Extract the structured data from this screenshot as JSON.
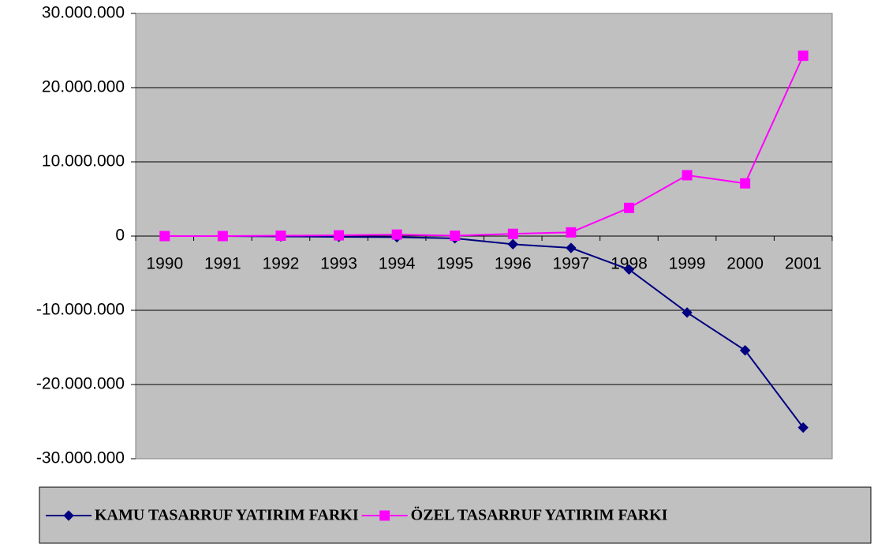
{
  "chart_data": {
    "type": "line",
    "categories": [
      "1990",
      "1991",
      "1992",
      "1993",
      "1994",
      "1995",
      "1996",
      "1997",
      "1998",
      "1999",
      "2000",
      "2001"
    ],
    "series": [
      {
        "name": "KAMU TASARRUF YATIRIM FARKI",
        "color": "#000080",
        "marker": "diamond",
        "values": [
          0,
          0,
          -50000,
          -100000,
          -150000,
          -300000,
          -1100000,
          -1600000,
          -4500000,
          -10300000,
          -15400000,
          -25800000
        ]
      },
      {
        "name": "ÖZEL TASARRUF YATIRIM FARKI",
        "color": "#ff00ff",
        "marker": "square",
        "values": [
          0,
          0,
          50000,
          100000,
          200000,
          50000,
          300000,
          500000,
          3800000,
          8200000,
          7100000,
          24300000
        ]
      }
    ],
    "ylim": [
      -30000000,
      30000000
    ],
    "yticks": [
      {
        "value": -30000000,
        "label": "-30.000.000"
      },
      {
        "value": -20000000,
        "label": "-20.000.000"
      },
      {
        "value": -10000000,
        "label": "-10.000.000"
      },
      0,
      {
        "value": 10000000,
        "label": "10.000.000"
      },
      {
        "value": 20000000,
        "label": "20.000.000"
      },
      {
        "value": 30000000,
        "label": "30.000.000"
      }
    ],
    "grid": true,
    "legend": "bottom"
  }
}
